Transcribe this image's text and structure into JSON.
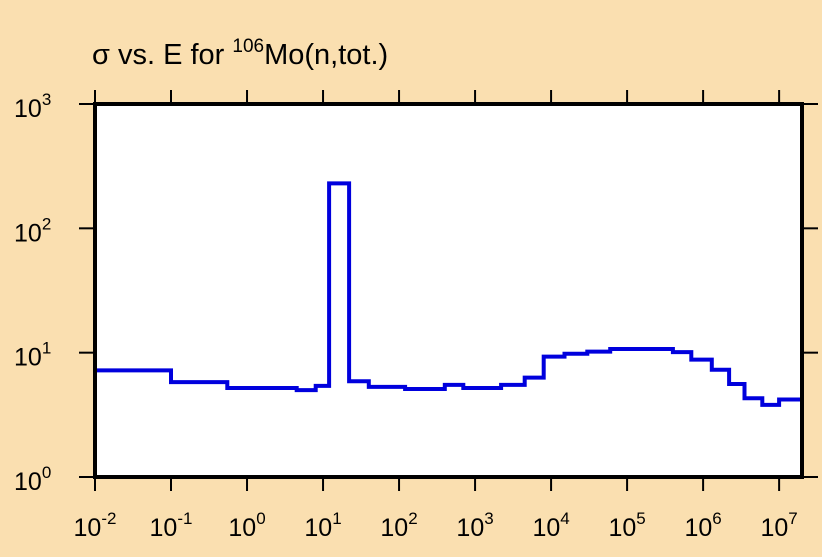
{
  "colors": {
    "background": "#fadfb0",
    "plot_area": "#ffffff",
    "frame": "#000000",
    "series": "#0000dd"
  },
  "chart_data": {
    "type": "line",
    "step": true,
    "title": {
      "pre": "σ vs. E for ",
      "superscript": "106",
      "post": "Mo(n,tot.)"
    },
    "xlabel": "",
    "ylabel": "",
    "x_scale": "log",
    "y_scale": "log",
    "xlim": [
      0.01,
      20000000
    ],
    "ylim": [
      1,
      1000
    ],
    "grid": false,
    "legend": "none",
    "x_ticks": [
      {
        "value": 0.01,
        "base": "10",
        "exp": "-2"
      },
      {
        "value": 0.1,
        "base": "10",
        "exp": "-1"
      },
      {
        "value": 1,
        "base": "10",
        "exp": "0"
      },
      {
        "value": 10,
        "base": "10",
        "exp": "1"
      },
      {
        "value": 100,
        "base": "10",
        "exp": "2"
      },
      {
        "value": 1000,
        "base": "10",
        "exp": "3"
      },
      {
        "value": 10000,
        "base": "10",
        "exp": "4"
      },
      {
        "value": 100000,
        "base": "10",
        "exp": "5"
      },
      {
        "value": 1000000,
        "base": "10",
        "exp": "6"
      },
      {
        "value": 10000000,
        "base": "10",
        "exp": "7"
      }
    ],
    "y_ticks": [
      {
        "value": 1,
        "base": "10",
        "exp": "0"
      },
      {
        "value": 10,
        "base": "10",
        "exp": "1"
      },
      {
        "value": 100,
        "base": "10",
        "exp": "2"
      },
      {
        "value": 1000,
        "base": "10",
        "exp": "3"
      }
    ],
    "series": [
      {
        "edges": [
          0.01,
          0.1,
          0.55,
          4.5,
          8,
          12,
          22,
          40,
          120,
          400,
          700,
          2200,
          4500,
          8000,
          15000,
          30000,
          60000,
          110000,
          400000,
          700000,
          1300000,
          2200000,
          3500000,
          6000000,
          10000000,
          20000000
        ],
        "values": [
          7.2,
          5.8,
          5.2,
          5.0,
          5.4,
          230,
          5.9,
          5.3,
          5.1,
          5.5,
          5.2,
          5.5,
          6.3,
          9.3,
          9.8,
          10.2,
          10.7,
          10.7,
          10.1,
          8.8,
          7.3,
          5.6,
          4.3,
          3.8,
          4.2
        ]
      }
    ]
  }
}
